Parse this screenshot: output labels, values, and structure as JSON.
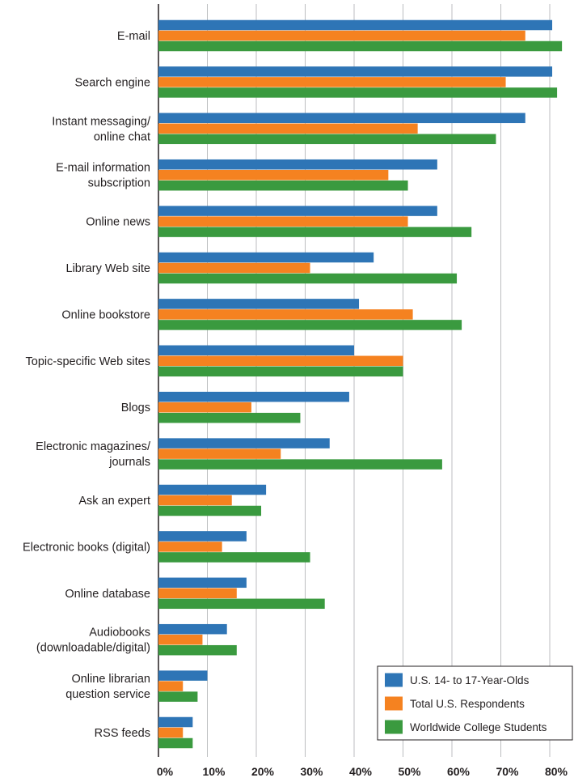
{
  "chart_data": {
    "type": "bar",
    "orientation": "horizontal",
    "title": "",
    "xlabel": "",
    "ylabel": "",
    "xlim": [
      0,
      85
    ],
    "grid": true,
    "legend_position": "bottom-right",
    "x_ticks": [
      0,
      10,
      20,
      30,
      40,
      50,
      60,
      70,
      80
    ],
    "x_tick_labels": [
      "0%",
      "10%",
      "20%",
      "30%",
      "40%",
      "50%",
      "60%",
      "70%",
      "80%"
    ],
    "categories": [
      [
        "E-mail"
      ],
      [
        "Search engine"
      ],
      [
        "Instant messaging/",
        "online chat"
      ],
      [
        "E-mail information",
        "subscription"
      ],
      [
        "Online news"
      ],
      [
        "Library Web site"
      ],
      [
        "Online bookstore"
      ],
      [
        "Topic-specific Web sites"
      ],
      [
        "Blogs"
      ],
      [
        "Electronic magazines/",
        "journals"
      ],
      [
        "Ask an expert"
      ],
      [
        "Electronic books (digital)"
      ],
      [
        "Online database"
      ],
      [
        "Audiobooks",
        "(downloadable/digital)"
      ],
      [
        "Online librarian",
        "question service"
      ],
      [
        "RSS feeds"
      ]
    ],
    "series": [
      {
        "name": "U.S. 14- to 17-Year-Olds",
        "color": "#2e75b6",
        "values": [
          80.5,
          80.5,
          75,
          57,
          57,
          44,
          41,
          40,
          39,
          35,
          22,
          18,
          18,
          14,
          10,
          7
        ]
      },
      {
        "name": "Total U.S. Respondents",
        "color": "#f58220",
        "values": [
          75,
          71,
          53,
          47,
          51,
          31,
          52,
          50,
          19,
          25,
          15,
          13,
          16,
          9,
          5,
          5
        ]
      },
      {
        "name": "Worldwide College Students",
        "color": "#3a9a3f",
        "values": [
          82.5,
          81.5,
          69,
          51,
          64,
          61,
          62,
          50,
          29,
          58,
          21,
          31,
          34,
          16,
          8,
          7
        ]
      }
    ]
  }
}
